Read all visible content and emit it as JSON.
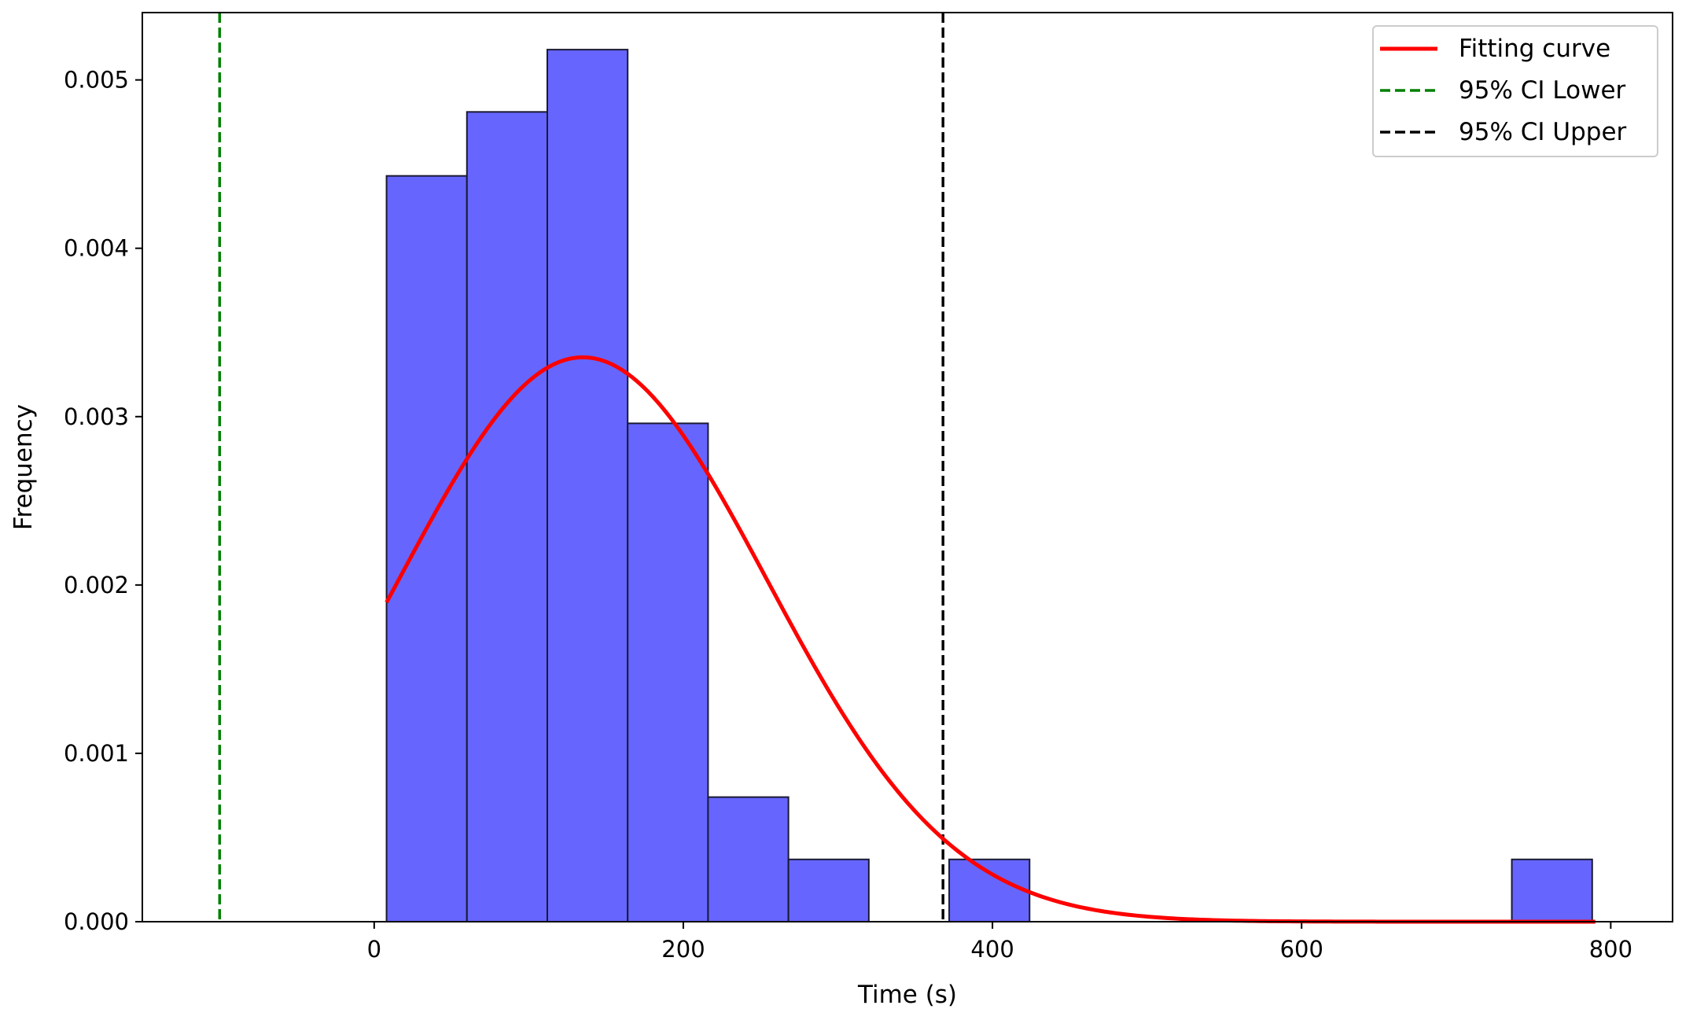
{
  "chart_data": {
    "type": "bar",
    "title": "",
    "xlabel": "Time (s)",
    "ylabel": "Frequency",
    "xlim": [
      -150,
      840
    ],
    "ylim": [
      0,
      0.0054
    ],
    "grid": false,
    "x_ticks": [
      0,
      200,
      400,
      600,
      800
    ],
    "x_tick_labels": [
      "0",
      "200",
      "400",
      "600",
      "800"
    ],
    "y_ticks": [
      0,
      0.001,
      0.002,
      0.003,
      0.004,
      0.005
    ],
    "y_tick_labels": [
      "0.000",
      "0.001",
      "0.002",
      "0.003",
      "0.004",
      "0.005"
    ],
    "histogram": {
      "color": "#6666ff",
      "edge_color": "#1a1a33",
      "bins": [
        {
          "start": 8,
          "end": 60,
          "value": 0.00443
        },
        {
          "start": 60,
          "end": 112,
          "value": 0.00481
        },
        {
          "start": 112,
          "end": 164,
          "value": 0.00518
        },
        {
          "start": 164,
          "end": 216,
          "value": 0.00296
        },
        {
          "start": 216,
          "end": 268,
          "value": 0.00074
        },
        {
          "start": 268,
          "end": 320,
          "value": 0.00037
        },
        {
          "start": 320,
          "end": 372,
          "value": 0
        },
        {
          "start": 372,
          "end": 424,
          "value": 0.00037
        },
        {
          "start": 424,
          "end": 476,
          "value": 0
        },
        {
          "start": 476,
          "end": 528,
          "value": 0
        },
        {
          "start": 528,
          "end": 580,
          "value": 0
        },
        {
          "start": 580,
          "end": 632,
          "value": 0
        },
        {
          "start": 632,
          "end": 684,
          "value": 0
        },
        {
          "start": 684,
          "end": 736,
          "value": 0
        },
        {
          "start": 736,
          "end": 788,
          "value": 0.00037
        }
      ]
    },
    "fitting_curve": {
      "name": "Fitting curve",
      "color": "#ff0000",
      "distribution": "normal",
      "mean": 135,
      "std": 119,
      "x_range": [
        8,
        790
      ]
    },
    "vlines": [
      {
        "name": "95% CI Lower",
        "x": -100,
        "color": "#008000",
        "style": "dashed"
      },
      {
        "name": "95% CI Upper",
        "x": 368,
        "color": "#000000",
        "style": "dashed"
      }
    ],
    "legend": {
      "position": "top-right",
      "entries": [
        {
          "label": "Fitting curve",
          "color": "#ff0000",
          "style": "solid"
        },
        {
          "label": "95% CI Lower",
          "color": "#008000",
          "style": "dashed"
        },
        {
          "label": "95% CI Upper",
          "color": "#000000",
          "style": "dashed"
        }
      ]
    }
  }
}
